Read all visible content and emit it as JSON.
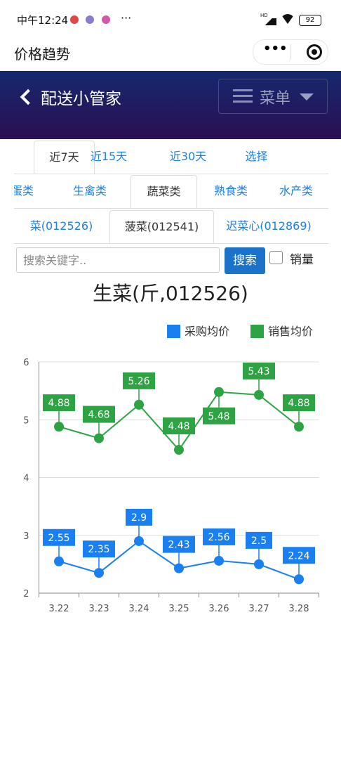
{
  "status": {
    "time": "中午12:24",
    "hd": "HD",
    "battery": "92"
  },
  "titlebar": {
    "title": "价格趋势"
  },
  "header": {
    "title": "配送小管家",
    "menu": "菜单"
  },
  "period_tabs": [
    "近7天",
    "近15天",
    "近30天",
    "选择"
  ],
  "category_tabs": [
    "蛋类",
    "生禽类",
    "蔬菜类",
    "熟食类",
    "水产类"
  ],
  "product_tabs": [
    "菜(012526)",
    "菠菜(012541)",
    "迟菜心(012869)"
  ],
  "search": {
    "placeholder": "搜索关键字..",
    "button": "搜索",
    "checkbox_label": "销量"
  },
  "chart_data": {
    "type": "line",
    "title": "生菜(斤,012526)",
    "categories": [
      "3.22",
      "3.23",
      "3.24",
      "3.25",
      "3.26",
      "3.27",
      "3.28"
    ],
    "series": [
      {
        "name": "采购均价",
        "color": "#1a7ff0",
        "values": [
          2.55,
          2.35,
          2.9,
          2.43,
          2.56,
          2.5,
          2.24
        ]
      },
      {
        "name": "销售均价",
        "color": "#2ea343",
        "values": [
          4.88,
          4.68,
          5.26,
          4.48,
          5.48,
          5.43,
          4.88
        ]
      }
    ],
    "ylim": [
      2,
      6
    ],
    "yticks": [
      2,
      3,
      4,
      5,
      6
    ],
    "grid": true
  }
}
